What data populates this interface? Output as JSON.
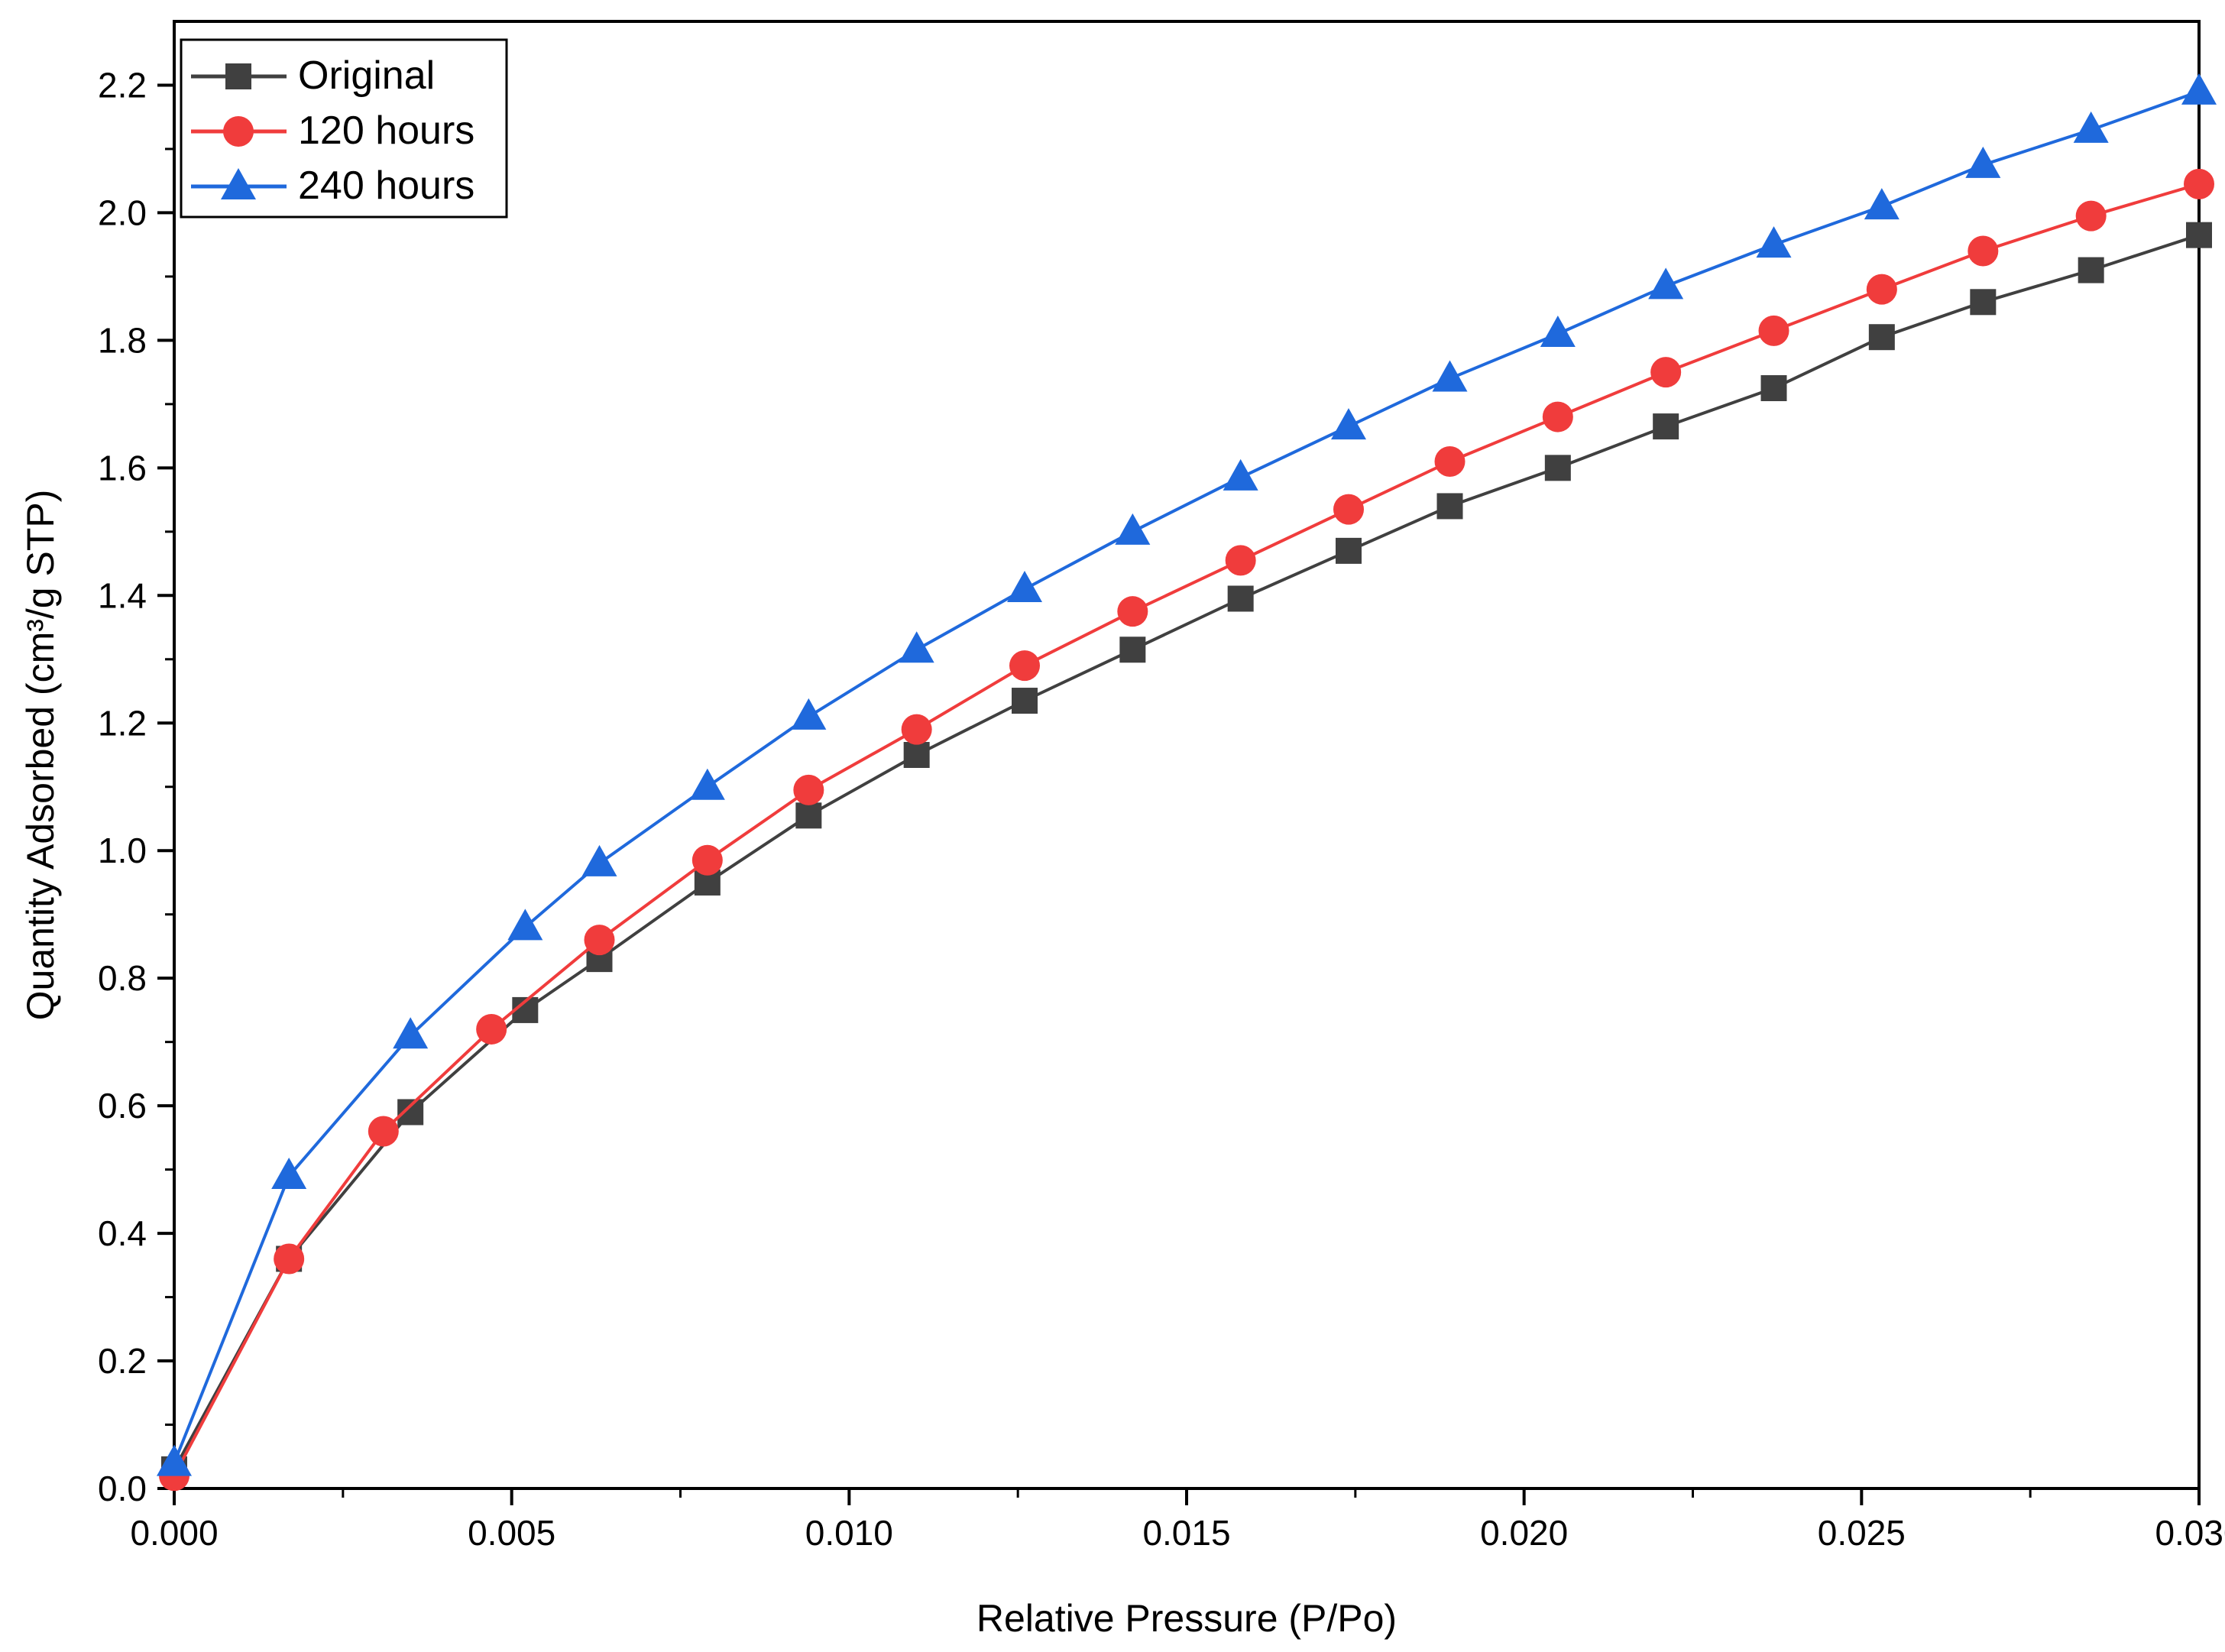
{
  "chart_data": {
    "type": "line",
    "title": "",
    "xlabel": "Relative Pressure (P/Po)",
    "ylabel": "Quantity Adsorbed (cm³/g STP)",
    "xlim": [
      0.0,
      0.03
    ],
    "ylim": [
      0.0,
      2.3
    ],
    "x_ticks": [
      "0.000",
      "0.005",
      "0.010",
      "0.015",
      "0.020",
      "0.025",
      "0.030"
    ],
    "y_ticks": [
      "0.0",
      "0.2",
      "0.4",
      "0.6",
      "0.8",
      "1.0",
      "1.2",
      "1.4",
      "1.6",
      "1.8",
      "2.0",
      "2.2"
    ],
    "grid": false,
    "legend_position": "top-left",
    "series": [
      {
        "name": "Original",
        "color": "#404040",
        "marker": "square",
        "x": [
          0.0,
          0.0017,
          0.0035,
          0.0052,
          0.0063,
          0.0079,
          0.0094,
          0.011,
          0.0126,
          0.0142,
          0.0158,
          0.0174,
          0.0189,
          0.0205,
          0.0221,
          0.0237,
          0.0253,
          0.0268,
          0.0284,
          0.03
        ],
        "values": [
          0.03,
          0.36,
          0.59,
          0.75,
          0.83,
          0.95,
          1.055,
          1.15,
          1.235,
          1.315,
          1.395,
          1.47,
          1.54,
          1.6,
          1.665,
          1.725,
          1.805,
          1.86,
          1.91,
          1.965
        ]
      },
      {
        "name": "120 hours",
        "color": "#f03c3c",
        "marker": "circle",
        "x": [
          0.0,
          0.0017,
          0.0031,
          0.0047,
          0.0063,
          0.0079,
          0.0094,
          0.011,
          0.0126,
          0.0142,
          0.0158,
          0.0174,
          0.0189,
          0.0205,
          0.0221,
          0.0237,
          0.0253,
          0.0268,
          0.0284,
          0.03
        ],
        "values": [
          0.02,
          0.36,
          0.56,
          0.72,
          0.86,
          0.985,
          1.095,
          1.19,
          1.29,
          1.375,
          1.455,
          1.535,
          1.61,
          1.68,
          1.75,
          1.815,
          1.88,
          1.94,
          1.995,
          2.045
        ]
      },
      {
        "name": "240 hours",
        "color": "#1f69dc",
        "marker": "triangle",
        "x": [
          0.0,
          0.0017,
          0.0035,
          0.0052,
          0.0063,
          0.0079,
          0.0094,
          0.011,
          0.0126,
          0.0142,
          0.0158,
          0.0174,
          0.0189,
          0.0205,
          0.0221,
          0.0237,
          0.0253,
          0.0268,
          0.0284,
          0.03
        ],
        "values": [
          0.04,
          0.49,
          0.71,
          0.88,
          0.98,
          1.1,
          1.21,
          1.315,
          1.41,
          1.5,
          1.585,
          1.665,
          1.74,
          1.81,
          1.885,
          1.95,
          2.01,
          2.075,
          2.13,
          2.19
        ]
      }
    ]
  }
}
